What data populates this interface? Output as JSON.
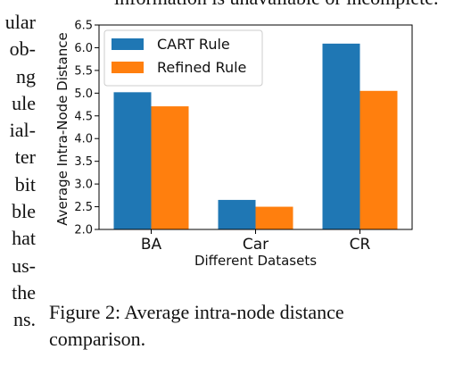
{
  "page": {
    "top_text": "information is unavailable or incomplete.",
    "left_column": [
      "ular",
      "ob-",
      "ng",
      "ule",
      "ial-",
      "ter",
      "bit",
      "ble",
      "hat",
      "us-",
      "the",
      "ns."
    ],
    "caption": "Figure 2: Average intra-node distance comparison."
  },
  "chart_data": {
    "type": "bar",
    "categories": [
      "BA",
      "Car",
      "CR"
    ],
    "series": [
      {
        "name": "CART Rule",
        "values": [
          5.02,
          2.65,
          6.09
        ],
        "color": "#1f77b4"
      },
      {
        "name": "Refined Rule",
        "values": [
          4.71,
          2.5,
          5.05
        ],
        "color": "#ff7f0e"
      }
    ],
    "xlabel": "Different Datasets",
    "ylabel": "Average Intra-Node Distance",
    "ylim": [
      2.0,
      6.5
    ],
    "yticks": [
      "2.0",
      "2.5",
      "3.0",
      "3.5",
      "4.0",
      "4.5",
      "5.0",
      "5.5",
      "6.0",
      "6.5"
    ],
    "legend_position": "top-left",
    "grid": false
  }
}
